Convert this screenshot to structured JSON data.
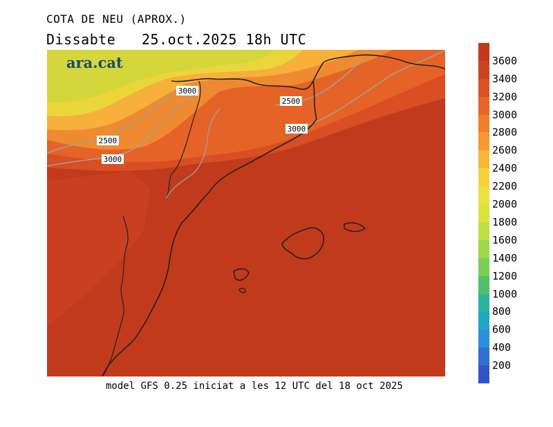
{
  "header": {
    "title": "COTA DE NEU (APROX.)",
    "subtitle": "Dissabte   25.oct.2025 18h UTC"
  },
  "logo": {
    "text": "ara.cat"
  },
  "map": {
    "contour_labels": [
      "3000",
      "2500",
      "3000",
      "2500",
      "3000"
    ],
    "colors": {
      "sea_dominant": "#c13a1c",
      "warm_orange": "#e05a20",
      "orange": "#ef7d2a",
      "light_orange": "#f7a83a",
      "yellow": "#f1d93a",
      "yellow_green": "#d6d63a",
      "outline": "#222222",
      "contour": "#a0a0a0"
    }
  },
  "footer": {
    "text": "model GFS 0.25 iniciat a les 12 UTC del 18 oct 2025"
  },
  "colorbar": {
    "ticks": [
      "3600",
      "3400",
      "3200",
      "3000",
      "2800",
      "2600",
      "2400",
      "2200",
      "2000",
      "1800",
      "1600",
      "1400",
      "1200",
      "1000",
      "800",
      "600",
      "400",
      "200"
    ],
    "colors": [
      "#c0391b",
      "#cc4320",
      "#da5225",
      "#e8652a",
      "#ef7f2e",
      "#f59932",
      "#f8b738",
      "#f6d13c",
      "#ece23d",
      "#d9e43f",
      "#bde046",
      "#9dd84e",
      "#7ccd55",
      "#53bf6a",
      "#2eb39a",
      "#1ea7c4",
      "#2c8fdb",
      "#2f6fd1",
      "#2f56c4"
    ]
  }
}
